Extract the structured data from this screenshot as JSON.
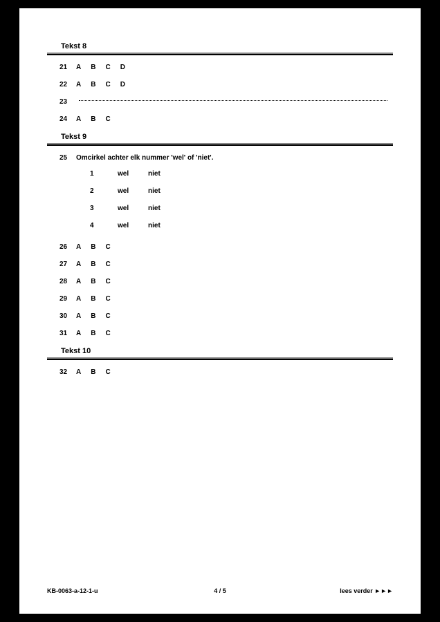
{
  "sections": [
    {
      "title": "Tekst 8",
      "questions": [
        {
          "num": "21",
          "type": "mc4",
          "opts": [
            "A",
            "B",
            "C",
            "D"
          ]
        },
        {
          "num": "22",
          "type": "mc4",
          "opts": [
            "A",
            "B",
            "C",
            "D"
          ]
        },
        {
          "num": "23",
          "type": "open"
        },
        {
          "num": "24",
          "type": "mc3",
          "opts": [
            "A",
            "B",
            "C"
          ]
        }
      ]
    },
    {
      "title": "Tekst 9",
      "instruction": {
        "num": "25",
        "text": "Omcirkel achter elk nummer 'wel' of 'niet'."
      },
      "tf_items": [
        {
          "num": "1",
          "a": "wel",
          "b": "niet"
        },
        {
          "num": "2",
          "a": "wel",
          "b": "niet"
        },
        {
          "num": "3",
          "a": "wel",
          "b": "niet"
        },
        {
          "num": "4",
          "a": "wel",
          "b": "niet"
        }
      ],
      "questions": [
        {
          "num": "26",
          "type": "mc3",
          "opts": [
            "A",
            "B",
            "C"
          ]
        },
        {
          "num": "27",
          "type": "mc3",
          "opts": [
            "A",
            "B",
            "C"
          ]
        },
        {
          "num": "28",
          "type": "mc3",
          "opts": [
            "A",
            "B",
            "C"
          ]
        },
        {
          "num": "29",
          "type": "mc3",
          "opts": [
            "A",
            "B",
            "C"
          ]
        },
        {
          "num": "30",
          "type": "mc3",
          "opts": [
            "A",
            "B",
            "C"
          ]
        },
        {
          "num": "31",
          "type": "mc3",
          "opts": [
            "A",
            "B",
            "C"
          ]
        }
      ]
    },
    {
      "title": "Tekst 10",
      "questions": [
        {
          "num": "32",
          "type": "mc3",
          "opts": [
            "A",
            "B",
            "C"
          ]
        }
      ]
    }
  ],
  "footer": {
    "left": "KB-0063-a-12-1-u",
    "center": "4 / 5",
    "right": "lees verder ►►►"
  }
}
